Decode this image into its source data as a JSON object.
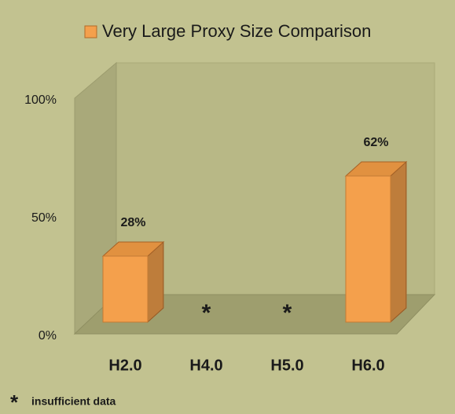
{
  "chart_data": {
    "type": "bar3d",
    "categories": [
      "H2.0",
      "H4.0",
      "H5.0",
      "H6.0"
    ],
    "series": [
      {
        "name": "Very Large Proxy Size Comparison",
        "color": "#f4a04c",
        "values": [
          28,
          null,
          null,
          62
        ],
        "value_labels": [
          "28%",
          null,
          null,
          "62%"
        ]
      }
    ],
    "ylim": [
      0,
      100
    ],
    "yticks": [
      {
        "value": 0,
        "label": "0%"
      },
      {
        "value": 50,
        "label": "50%"
      },
      {
        "value": 100,
        "label": "100%"
      }
    ],
    "note": {
      "marker": "*",
      "text": "insufficient data"
    }
  }
}
